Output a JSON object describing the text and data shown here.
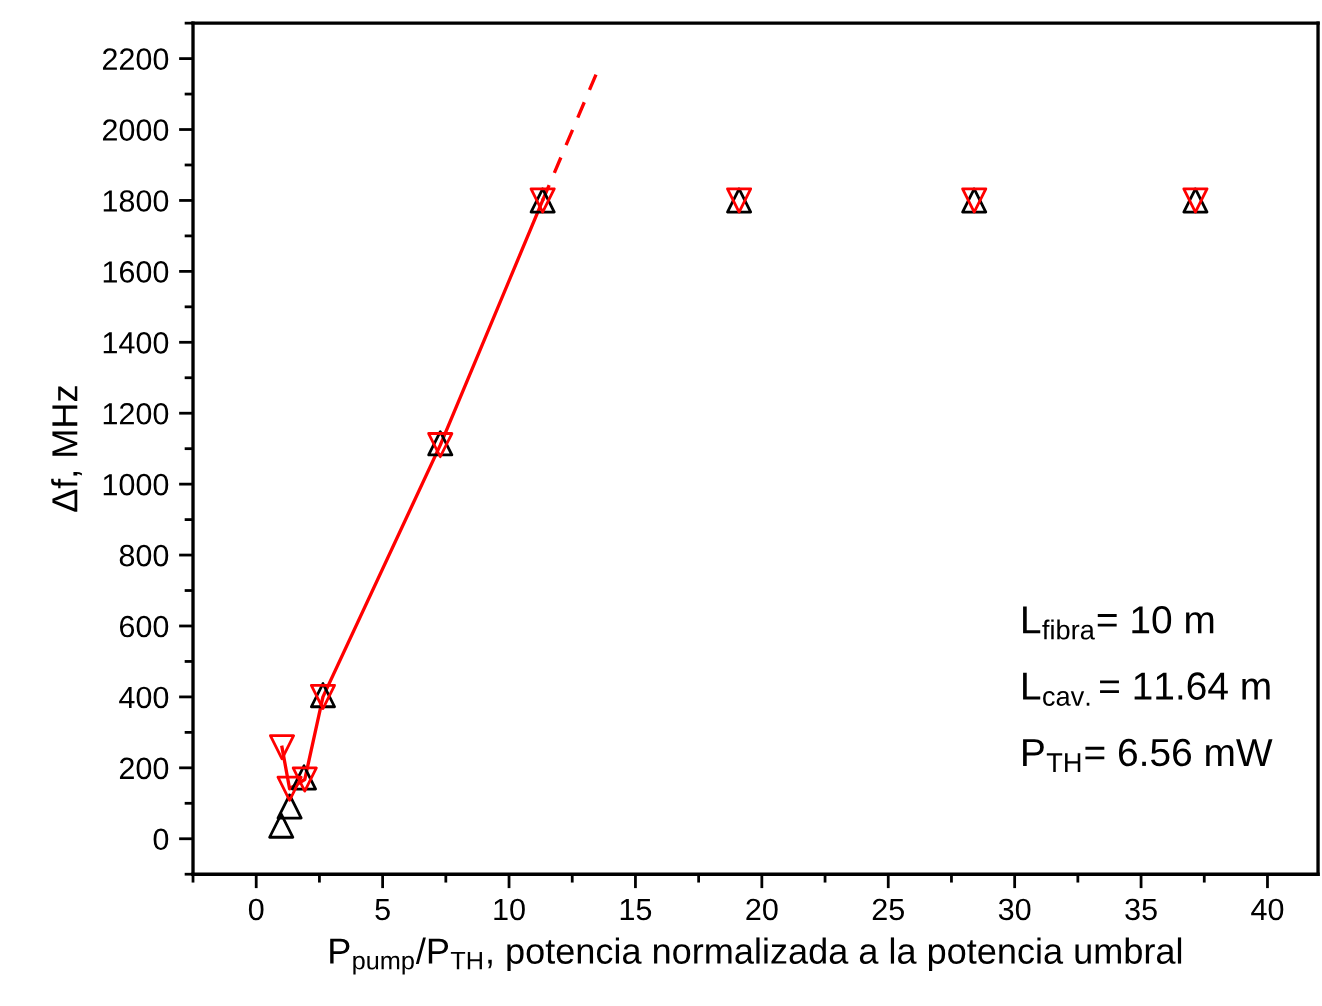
{
  "chart_data": {
    "type": "scatter",
    "xlabel": "P$_{pump}$/P$_{TH}$, potencia normalizada a la potencia umbral",
    "ylabel": "Δf, MHz",
    "xlim": [
      -2.5,
      42
    ],
    "ylim": [
      -100,
      2300
    ],
    "xticks": [
      0,
      5,
      10,
      15,
      20,
      25,
      30,
      35,
      40
    ],
    "yticks": [
      0,
      200,
      400,
      600,
      800,
      1000,
      1200,
      1400,
      1600,
      1800,
      2000,
      2200
    ],
    "grid": false,
    "legend": false,
    "series": [
      {
        "marker": "triangle",
        "color": "#000000",
        "x": [
          0.99,
          1.32,
          1.89,
          2.64,
          7.28,
          11.33,
          19.1,
          28.4,
          37.15
        ],
        "values": [
          37,
          91,
          173,
          405,
          1115,
          1800,
          1800,
          1800,
          1800
        ]
      },
      {
        "type": "line",
        "marker": "triangle_down",
        "line_style": "solid",
        "color": "#ff0000",
        "x": [
          1.02,
          1.32,
          1.92,
          2.64,
          7.28,
          11.33
        ],
        "values": [
          258,
          141,
          167,
          400,
          1110,
          1800
        ]
      },
      {
        "marker": "triangle_down",
        "color": "#ff0000",
        "x": [
          19.1,
          28.4,
          37.15
        ],
        "values": [
          1800,
          1800,
          1800
        ]
      },
      {
        "type": "line",
        "marker": "none",
        "line_style": "dashed",
        "color": "#ff0000",
        "x": [
          11.33,
          13.5
        ],
        "values": [
          1800,
          2165
        ]
      }
    ],
    "annotations": [
      "L$_{fibra}$= 10 m",
      "L$_{cav.}$= 11.64 m",
      "P$_{TH}$= 6.56 mW"
    ]
  }
}
